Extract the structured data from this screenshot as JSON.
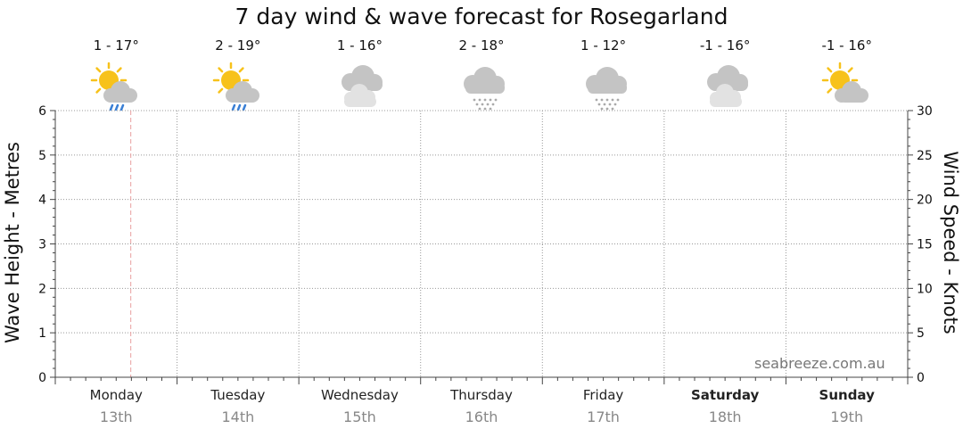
{
  "title": "7 day wind & wave forecast for Rosegarland",
  "watermark": "seabreeze.com.au",
  "colors": {
    "grid": "#999999",
    "now_line": "#e8a0a0",
    "sun": "#f7c21b",
    "cloud": "#c8c8c8",
    "rain": "#3a7fd5",
    "date_text": "#888888"
  },
  "days": [
    {
      "day": "Monday",
      "date": "13th",
      "temp": "1 - 17°",
      "icon": "sun-cloud-rain-icon",
      "bold": false
    },
    {
      "day": "Tuesday",
      "date": "14th",
      "temp": "2 - 19°",
      "icon": "sun-cloud-rain-icon",
      "bold": false
    },
    {
      "day": "Wednesday",
      "date": "15th",
      "temp": "1 - 16°",
      "icon": "cloudy-icon",
      "bold": false
    },
    {
      "day": "Thursday",
      "date": "16th",
      "temp": "2 - 18°",
      "icon": "cloud-snow-icon",
      "bold": false
    },
    {
      "day": "Friday",
      "date": "17th",
      "temp": "1 - 12°",
      "icon": "cloud-snow-icon",
      "bold": false
    },
    {
      "day": "Saturday",
      "date": "18th",
      "temp": "-1 - 16°",
      "icon": "cloudy-icon",
      "bold": true
    },
    {
      "day": "Sunday",
      "date": "19th",
      "temp": "-1 - 16°",
      "icon": "sun-cloud-icon",
      "bold": true
    }
  ],
  "chart_data": {
    "type": "line",
    "title": "7 day wind & wave forecast for Rosegarland",
    "x": [
      "Monday 13th",
      "Tuesday 14th",
      "Wednesday 15th",
      "Thursday 16th",
      "Friday 17th",
      "Saturday 18th",
      "Sunday 19th"
    ],
    "series": [],
    "y_left": {
      "label": "Wave Height - Metres",
      "range": [
        0,
        6
      ],
      "ticks": [
        0,
        1,
        2,
        3,
        4,
        5,
        6
      ]
    },
    "y_right": {
      "label": "Wind Speed - Knots",
      "range": [
        0,
        30
      ],
      "ticks": [
        0,
        5,
        10,
        15,
        20,
        25,
        30
      ]
    },
    "grid": true,
    "current_time_marker_day": 0.62
  }
}
